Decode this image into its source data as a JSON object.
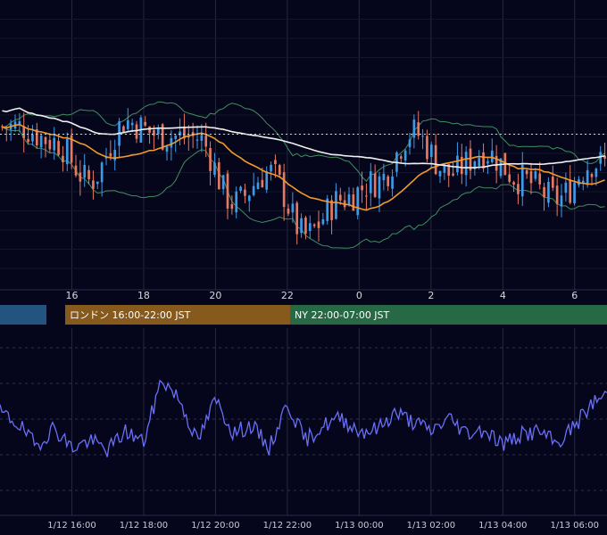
{
  "colors": {
    "background": "#05061b",
    "grid": "#26283c",
    "up_candle": "#3d9ae8",
    "down_candle": "#e57a63",
    "ma_long": "#f1f1f1",
    "ma_short": "#f39a2a",
    "bollinger": "#3f8f5c",
    "rsi_line": "#6a6ff7",
    "tokyo_session": "#23537f",
    "london_session": "#86591c",
    "ny_session": "#276845"
  },
  "chart_data": [
    {
      "type": "candlestick",
      "x": [
        14.5,
        15.5,
        16.5,
        17.5,
        18.5,
        19.5,
        20.5,
        21.5,
        22.5,
        23.5,
        24.5,
        25.5,
        26.5,
        27.5,
        28.5,
        29.5,
        30.5
      ],
      "x_ticks": [
        "16",
        "18",
        "20",
        "22",
        "0",
        "2",
        "4",
        "6"
      ],
      "close": [
        1.0,
        0.2,
        -2.0,
        1.3,
        0.5,
        0.4,
        -3.2,
        -1.5,
        -5.0,
        -3.0,
        -2.0,
        0.7,
        -1.6,
        -0.4,
        -1.9,
        -3.0,
        -1.0
      ],
      "price_line": 0.0,
      "grid": true,
      "series": []
    },
    {
      "type": "line",
      "x": [
        14.0,
        14.5,
        15.0,
        15.5,
        16.0,
        16.5,
        17.0,
        17.5,
        18.0,
        18.5,
        19.0,
        19.5,
        20.0,
        20.5,
        21.0,
        21.5,
        22.0,
        22.5,
        23.0,
        23.5,
        24.0,
        24.5,
        25.0,
        25.5,
        26.0,
        26.5,
        27.0,
        27.5,
        28.0,
        28.5,
        29.0,
        29.5,
        30.0,
        30.5,
        30.9
      ],
      "y": [
        55,
        49,
        37,
        47,
        36,
        40,
        35,
        45,
        39,
        73,
        62,
        39,
        62,
        44,
        48,
        36,
        60,
        40,
        48,
        52,
        45,
        46,
        55,
        50,
        45,
        52,
        44,
        46,
        38,
        43,
        45,
        38,
        48,
        60,
        65
      ],
      "grid": true
    }
  ],
  "sessions": [
    {
      "label": ""
    },
    {
      "label": "ロンドン 16:00-22:00 JST"
    },
    {
      "label": "NY 22:00-07:00 JST"
    }
  ],
  "bottom_axis": [
    "1/12 16:00",
    "1/12 18:00",
    "1/12 20:00",
    "1/12 22:00",
    "1/13 00:00",
    "1/13 02:00",
    "1/13 04:00",
    "1/13 06:00"
  ]
}
